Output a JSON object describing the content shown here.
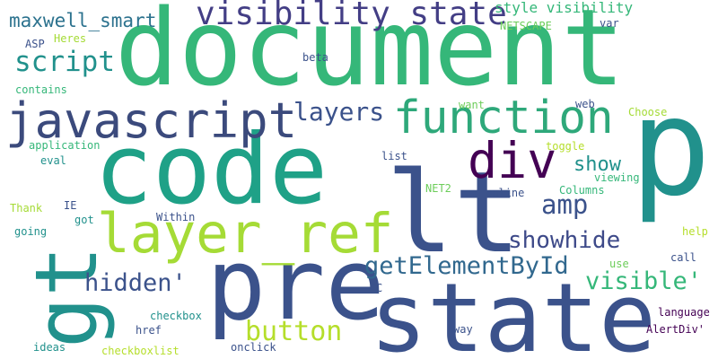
{
  "colors": {
    "background": "#ffffff",
    "palette": [
      "#440154",
      "#3b528b",
      "#21918c",
      "#1fa187",
      "#35b779",
      "#6ccd5a",
      "#a5db36",
      "#b5de2b"
    ]
  },
  "words": [
    {
      "text": "document",
      "color": "#35b779"
    },
    {
      "text": "p",
      "color": "#21918c"
    },
    {
      "text": "code",
      "color": "#1fa187"
    },
    {
      "text": "lt",
      "color": "#3b528b"
    },
    {
      "text": "state",
      "color": "#3b528b"
    },
    {
      "text": "pre",
      "color": "#3b528b"
    },
    {
      "text": "gt",
      "color": "#21918c"
    },
    {
      "text": "javascript",
      "color": "#3b4a7c"
    },
    {
      "text": "function",
      "color": "#2ea87a"
    },
    {
      "text": "layer_ref",
      "color": "#a5db36"
    },
    {
      "text": "div",
      "color": "#440154"
    },
    {
      "text": "visibility state",
      "color": "#433e85"
    },
    {
      "text": "script",
      "color": "#21918c"
    },
    {
      "text": "maxwell_smart",
      "color": "#2c728e"
    },
    {
      "text": "layers",
      "color": "#3b528b"
    },
    {
      "text": "amp",
      "color": "#3b528b"
    },
    {
      "text": "show",
      "color": "#21918c"
    },
    {
      "text": "showhide",
      "color": "#3e4a89"
    },
    {
      "text": "getElementById",
      "color": "#31688e"
    },
    {
      "text": "visible'",
      "color": "#35b779"
    },
    {
      "text": "hidden'",
      "color": "#3b528b"
    },
    {
      "text": "button",
      "color": "#b5de2b"
    },
    {
      "text": "style visibility",
      "color": "#35b779"
    },
    {
      "text": "Heres",
      "color": "#a5db36"
    },
    {
      "text": "ASP",
      "color": "#3b528b"
    },
    {
      "text": "NETSCAPE",
      "color": "#6ccd5a"
    },
    {
      "text": "var",
      "color": "#3b528b"
    },
    {
      "text": "beta",
      "color": "#3b528b"
    },
    {
      "text": "contains",
      "color": "#35b779"
    },
    {
      "text": "want",
      "color": "#6ccd5a"
    },
    {
      "text": "web",
      "color": "#3b528b"
    },
    {
      "text": "Choose",
      "color": "#a5db36"
    },
    {
      "text": "application",
      "color": "#35b779"
    },
    {
      "text": "eval",
      "color": "#21918c"
    },
    {
      "text": "list",
      "color": "#3b528b"
    },
    {
      "text": "toggle",
      "color": "#b5de2b"
    },
    {
      "text": "viewing",
      "color": "#35b779"
    },
    {
      "text": "NET2",
      "color": "#6ccd5a"
    },
    {
      "text": "online",
      "color": "#3b528b"
    },
    {
      "text": "Columns",
      "color": "#35b779"
    },
    {
      "text": "Thank",
      "color": "#a5db36"
    },
    {
      "text": "IE",
      "color": "#3b528b"
    },
    {
      "text": "got",
      "color": "#21918c"
    },
    {
      "text": "Within",
      "color": "#3b528b"
    },
    {
      "text": "going",
      "color": "#21918c"
    },
    {
      "text": "help",
      "color": "#b5de2b"
    },
    {
      "text": "use",
      "color": "#6ccd5a"
    },
    {
      "text": "call",
      "color": "#3b528b"
    },
    {
      "text": "C",
      "color": "#3b528b"
    },
    {
      "text": "checkbox",
      "color": "#21918c"
    },
    {
      "text": "language",
      "color": "#440154"
    },
    {
      "text": "href",
      "color": "#3b528b"
    },
    {
      "text": "way",
      "color": "#3b528b"
    },
    {
      "text": "AlertDiv'",
      "color": "#440154"
    },
    {
      "text": "ideas",
      "color": "#21918c"
    },
    {
      "text": "checkboxlist",
      "color": "#b5de2b"
    },
    {
      "text": "onclick",
      "color": "#3b528b"
    }
  ]
}
